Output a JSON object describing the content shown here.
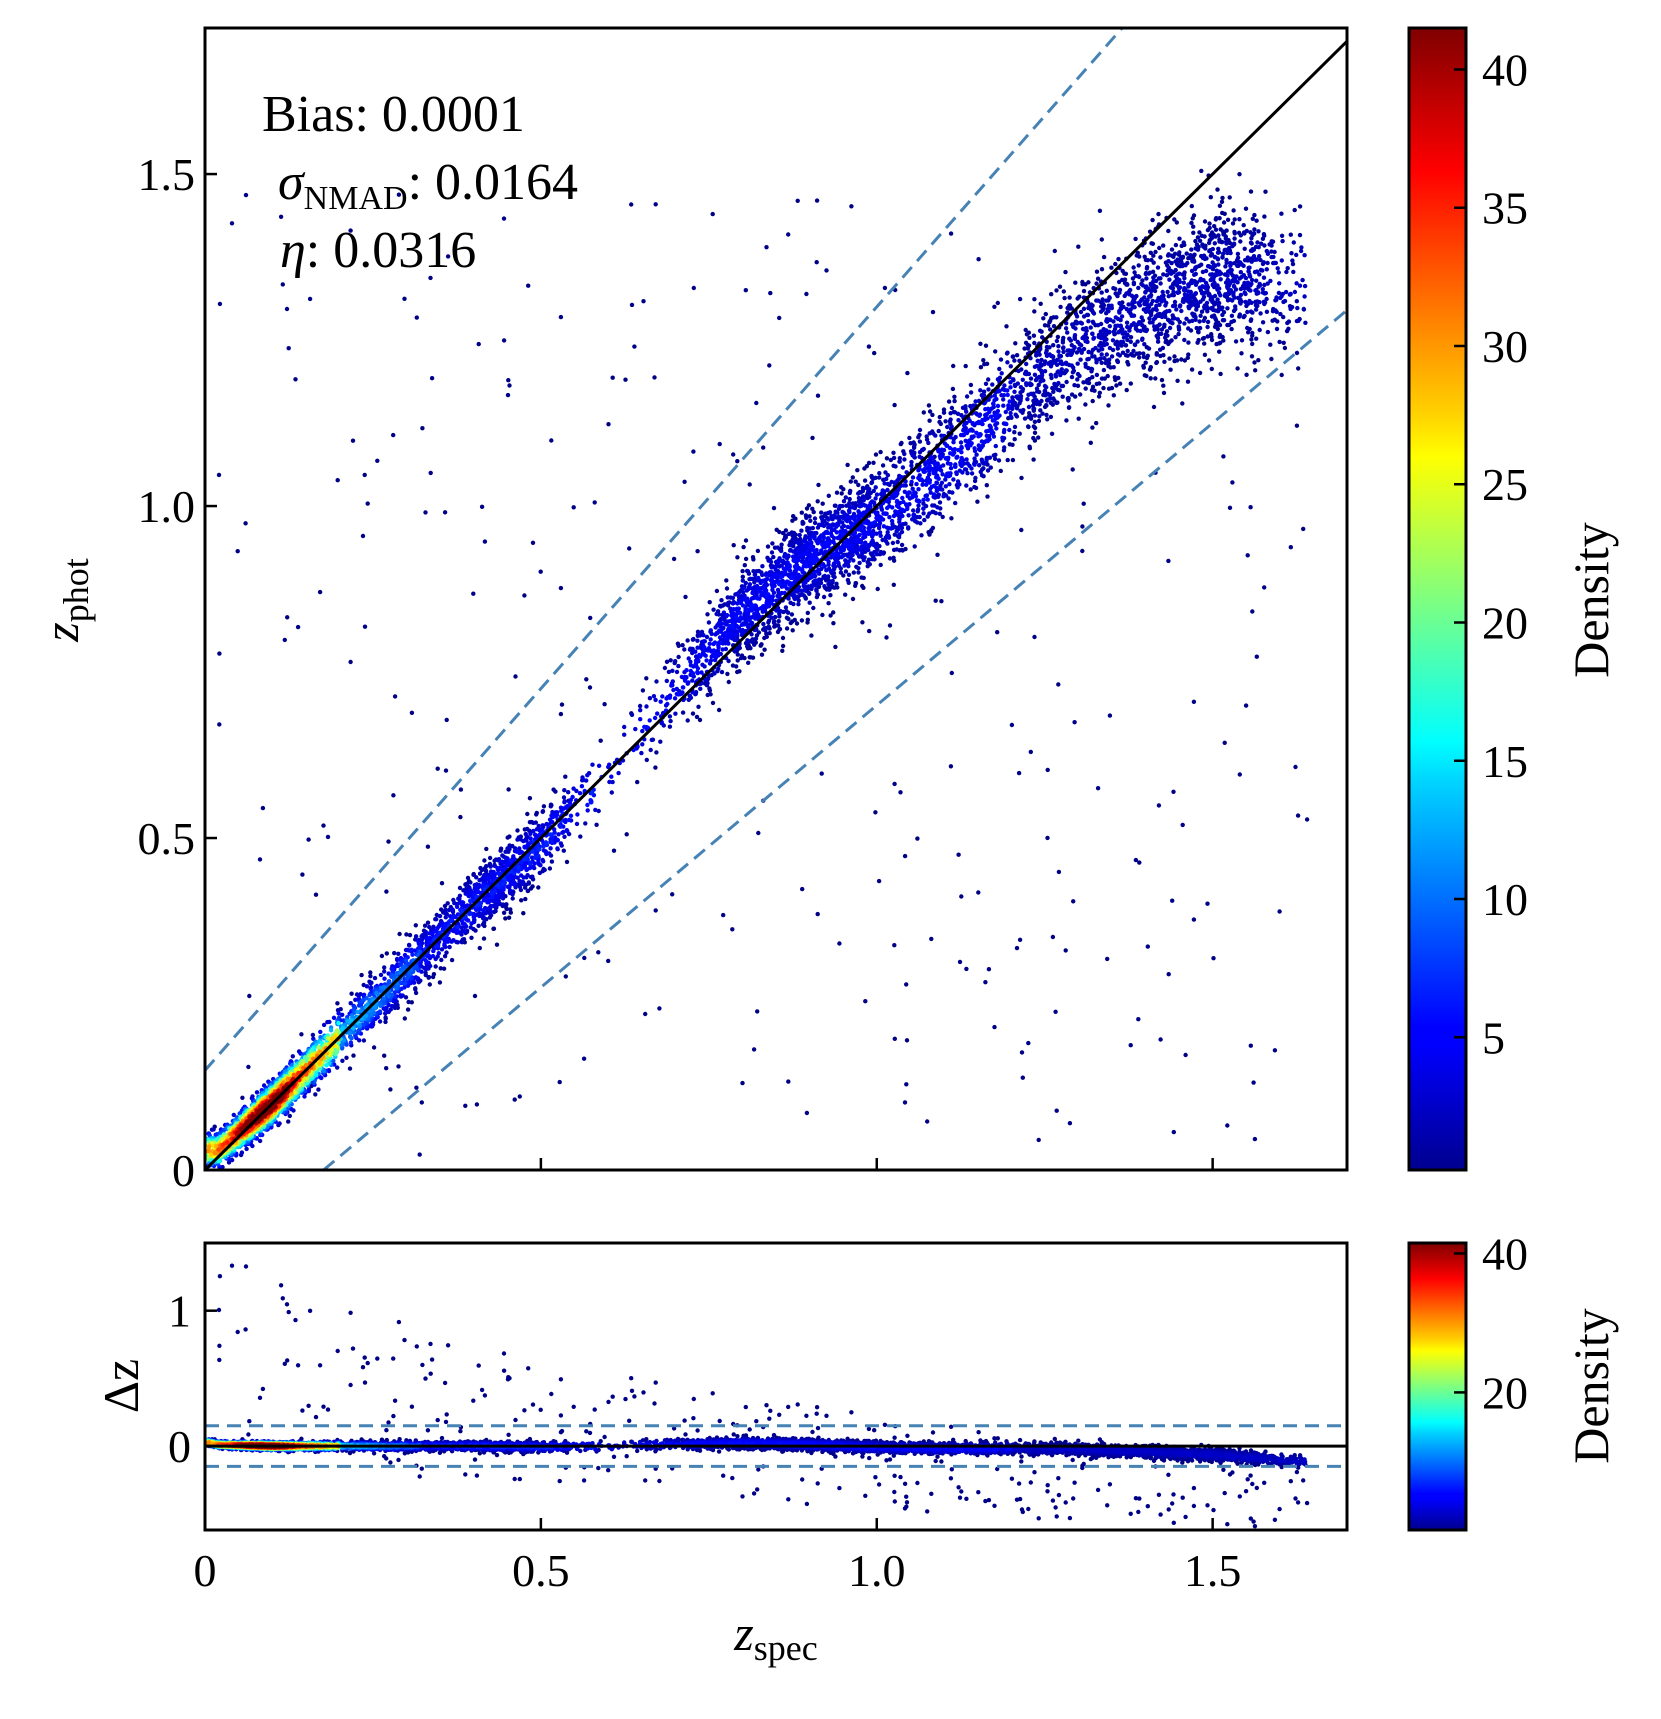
{
  "chart_data": [
    {
      "type": "scatter",
      "panel": "main",
      "xlabel": "z",
      "xlabel_sub": "spec",
      "ylabel": "z",
      "ylabel_sub": "phot",
      "xlim": [
        0,
        1.7
      ],
      "ylim": [
        0,
        1.72
      ],
      "xticks": [
        0,
        0.5,
        1.0,
        1.5
      ],
      "yticks": [
        0,
        0.5,
        1.0,
        1.5
      ],
      "xtick_labels": [
        "0",
        "0.5",
        "1.0",
        "1.5"
      ],
      "ytick_labels": [
        "0",
        "0.5",
        "1.0",
        "1.5"
      ],
      "show_xtick_labels": false,
      "annotations": {
        "bias_label": "Bias: 0.0001",
        "sigma_symbol": "σ",
        "sigma_sub": "NMAD",
        "sigma_value": ": 0.0164",
        "eta_symbol": "η",
        "eta_value": ": 0.0316"
      },
      "reference_lines": {
        "identity": "z_phot = z_spec",
        "outlier_bounds": "z_phot = z_spec ± 0.15(1 + z_spec)"
      },
      "density_ridge": {
        "x": [
          0.02,
          0.1,
          0.2,
          0.3,
          0.4,
          0.5,
          0.6,
          0.7,
          0.8,
          0.9,
          1.0,
          1.1,
          1.2,
          1.3,
          1.4,
          1.5,
          1.6
        ],
        "y": [
          0.03,
          0.1,
          0.2,
          0.3,
          0.4,
          0.49,
          0.6,
          0.72,
          0.84,
          0.92,
          0.98,
          1.06,
          1.16,
          1.24,
          1.3,
          1.34,
          1.34
        ]
      },
      "colorbar": {
        "label": "Density",
        "ticks": [
          5,
          10,
          15,
          20,
          25,
          30,
          35,
          40
        ],
        "range": [
          0.2,
          41.5
        ],
        "colormap": "jet"
      }
    },
    {
      "type": "scatter",
      "panel": "residual",
      "xlabel": "z",
      "xlabel_sub": "spec",
      "ylabel": "Δz",
      "xlim": [
        0,
        1.7
      ],
      "ylim": [
        -0.62,
        1.5
      ],
      "xticks": [
        0,
        0.5,
        1.0,
        1.5
      ],
      "xtick_labels": [
        "0",
        "0.5",
        "1.0",
        "1.5"
      ],
      "yticks": [
        0,
        1
      ],
      "ytick_labels": [
        "0",
        "1"
      ],
      "reference_lines": {
        "zero": 0,
        "upper": 0.15,
        "lower": -0.15
      },
      "colorbar": {
        "label": "Density",
        "ticks": [
          20,
          40
        ],
        "range": [
          0.2,
          41.5
        ],
        "colormap": "jet"
      }
    }
  ],
  "colors": {
    "low_density": "#00008f",
    "dashed_line": "#4682b4",
    "identity_line": "#000000"
  }
}
